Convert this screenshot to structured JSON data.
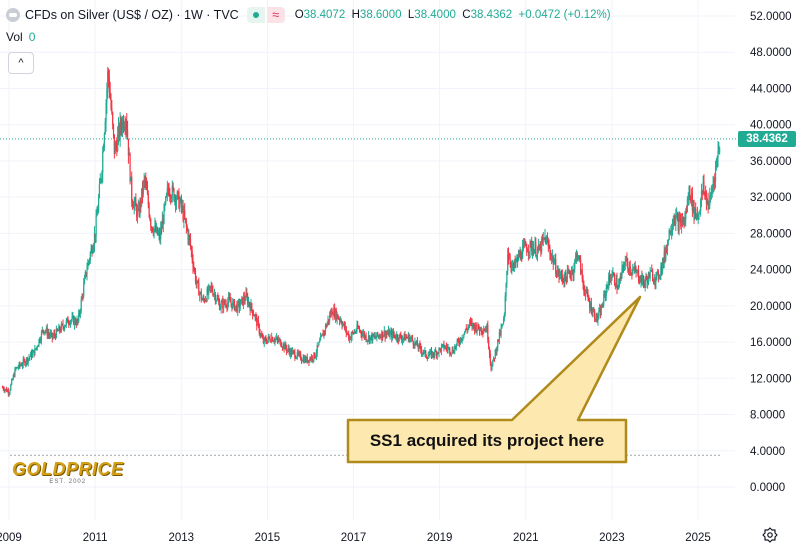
{
  "header": {
    "title": "CFDs on Silver (US$ / OZ) · 1W · TVC",
    "open_label": "O",
    "open": "38.4072",
    "high_label": "H",
    "high": "38.6000",
    "low_label": "L",
    "low": "38.4000",
    "close_label": "C",
    "close": "38.4362",
    "change": "+0.0472 (+0.12%)",
    "wave_glyph": "≈"
  },
  "volume": {
    "label": "Vol",
    "value": "0"
  },
  "collapse_glyph": "^",
  "last_price_badge": "38.4362",
  "annotation": "SS1 acquired its project here",
  "logo": {
    "name": "GOLDPRICE",
    "sub": "EST. 2002"
  },
  "colors": {
    "up": "#22ab94",
    "down": "#f23645",
    "callout_fill": "#fde9b0",
    "callout_border": "#b08a1a"
  },
  "chart_data": {
    "type": "candlestick",
    "title": "CFDs on Silver (US$ / OZ) · 1W · TVC",
    "xlabel": "",
    "ylabel": "",
    "ylim": [
      -1,
      54
    ],
    "xlim": [
      2008.8,
      2025.9
    ],
    "y_ticks": [
      "52.0000",
      "48.0000",
      "44.0000",
      "40.0000",
      "36.0000",
      "32.0000",
      "28.0000",
      "24.0000",
      "20.0000",
      "16.0000",
      "12.0000",
      "8.0000",
      "4.0000",
      "0.0000"
    ],
    "y_tick_values": [
      52,
      48,
      44,
      40,
      36,
      32,
      28,
      24,
      20,
      16,
      12,
      8,
      4,
      0
    ],
    "x_ticks": [
      "2009",
      "2011",
      "2013",
      "2015",
      "2017",
      "2019",
      "2021",
      "2023",
      "2025"
    ],
    "x_tick_values": [
      2009,
      2011,
      2013,
      2015,
      2017,
      2019,
      2021,
      2023,
      2025
    ],
    "last_price": 38.4362,
    "dotted_reference_level": 3.5,
    "series_approx_close": [
      [
        2008.85,
        11.0
      ],
      [
        2009.0,
        10.5
      ],
      [
        2009.15,
        13.0
      ],
      [
        2009.4,
        14.0
      ],
      [
        2009.6,
        15.0
      ],
      [
        2009.8,
        17.5
      ],
      [
        2010.0,
        16.5
      ],
      [
        2010.2,
        17.5
      ],
      [
        2010.4,
        18.5
      ],
      [
        2010.6,
        18.2
      ],
      [
        2010.8,
        24.0
      ],
      [
        2011.0,
        28.0
      ],
      [
        2011.15,
        35.0
      ],
      [
        2011.3,
        46.0
      ],
      [
        2011.45,
        37.0
      ],
      [
        2011.6,
        40.0
      ],
      [
        2011.72,
        41.0
      ],
      [
        2011.85,
        32.0
      ],
      [
        2012.0,
        30.0
      ],
      [
        2012.15,
        34.0
      ],
      [
        2012.3,
        29.0
      ],
      [
        2012.5,
        27.5
      ],
      [
        2012.7,
        33.0
      ],
      [
        2012.9,
        32.0
      ],
      [
        2013.0,
        31.0
      ],
      [
        2013.2,
        27.0
      ],
      [
        2013.35,
        22.5
      ],
      [
        2013.5,
        20.5
      ],
      [
        2013.7,
        22.0
      ],
      [
        2013.9,
        20.0
      ],
      [
        2014.1,
        20.5
      ],
      [
        2014.3,
        19.8
      ],
      [
        2014.5,
        21.0
      ],
      [
        2014.7,
        19.0
      ],
      [
        2014.9,
        16.0
      ],
      [
        2015.1,
        16.5
      ],
      [
        2015.3,
        16.0
      ],
      [
        2015.5,
        15.0
      ],
      [
        2015.7,
        14.5
      ],
      [
        2015.9,
        14.0
      ],
      [
        2016.1,
        14.5
      ],
      [
        2016.3,
        17.0
      ],
      [
        2016.5,
        19.5
      ],
      [
        2016.7,
        18.5
      ],
      [
        2016.9,
        16.5
      ],
      [
        2017.1,
        17.5
      ],
      [
        2017.3,
        16.5
      ],
      [
        2017.5,
        16.5
      ],
      [
        2017.7,
        17.0
      ],
      [
        2017.9,
        16.8
      ],
      [
        2018.1,
        16.5
      ],
      [
        2018.3,
        16.5
      ],
      [
        2018.5,
        15.5
      ],
      [
        2018.7,
        14.5
      ],
      [
        2018.9,
        14.8
      ],
      [
        2019.1,
        15.5
      ],
      [
        2019.3,
        15.0
      ],
      [
        2019.5,
        16.5
      ],
      [
        2019.7,
        18.0
      ],
      [
        2019.9,
        17.5
      ],
      [
        2020.1,
        17.5
      ],
      [
        2020.2,
        13.0
      ],
      [
        2020.35,
        16.0
      ],
      [
        2020.5,
        18.5
      ],
      [
        2020.58,
        26.0
      ],
      [
        2020.7,
        24.0
      ],
      [
        2020.85,
        25.5
      ],
      [
        2021.0,
        26.5
      ],
      [
        2021.15,
        26.5
      ],
      [
        2021.3,
        26.0
      ],
      [
        2021.45,
        27.5
      ],
      [
        2021.6,
        25.5
      ],
      [
        2021.75,
        23.5
      ],
      [
        2021.9,
        23.0
      ],
      [
        2022.1,
        24.0
      ],
      [
        2022.2,
        26.0
      ],
      [
        2022.35,
        22.0
      ],
      [
        2022.5,
        20.0
      ],
      [
        2022.65,
        18.5
      ],
      [
        2022.75,
        19.5
      ],
      [
        2022.9,
        22.5
      ],
      [
        2023.0,
        23.5
      ],
      [
        2023.15,
        22.0
      ],
      [
        2023.3,
        25.0
      ],
      [
        2023.45,
        24.0
      ],
      [
        2023.6,
        23.5
      ],
      [
        2023.75,
        22.5
      ],
      [
        2023.9,
        23.5
      ],
      [
        2024.05,
        23.0
      ],
      [
        2024.2,
        25.0
      ],
      [
        2024.35,
        28.5
      ],
      [
        2024.45,
        30.0
      ],
      [
        2024.55,
        29.0
      ],
      [
        2024.7,
        29.5
      ],
      [
        2024.8,
        33.0
      ],
      [
        2024.9,
        30.5
      ],
      [
        2025.0,
        30.0
      ],
      [
        2025.12,
        33.0
      ],
      [
        2025.25,
        31.0
      ],
      [
        2025.35,
        33.5
      ],
      [
        2025.45,
        36.5
      ],
      [
        2025.52,
        38.4362
      ]
    ]
  }
}
